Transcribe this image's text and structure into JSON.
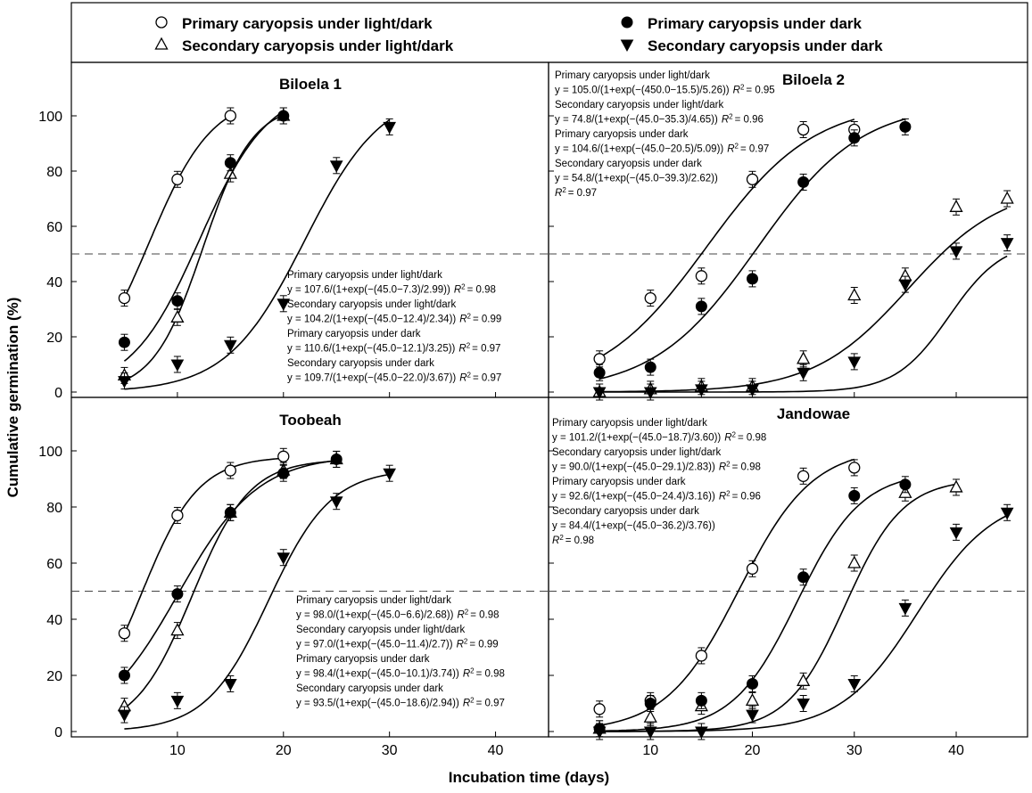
{
  "figure": {
    "xlabel": "Incubation time (days)",
    "ylabel": "Cumulative germination (%)",
    "legend": [
      {
        "label": "Primary caryopsis under light/dark",
        "marker": "open-circle"
      },
      {
        "label": "Primary caryopsis under dark",
        "marker": "filled-circle"
      },
      {
        "label": "Secondary caryopsis under light/dark",
        "marker": "open-triangle-up"
      },
      {
        "label": "Secondary caryopsis under dark",
        "marker": "filled-triangle-down"
      }
    ],
    "reference_line": 50
  },
  "chart_data": [
    {
      "type": "scatter",
      "title": "Biloela 1",
      "xlim": [
        0,
        45
      ],
      "ylim": [
        0,
        115
      ],
      "xticks": [
        10,
        20,
        30,
        40
      ],
      "yticks": [
        0,
        20,
        40,
        60,
        80,
        100
      ],
      "hline": 50,
      "grid": false,
      "legend_placement": "top",
      "series": [
        {
          "name": "Primary caryopsis under light/dark",
          "marker": "open-circle",
          "x": [
            5,
            10,
            15
          ],
          "y": [
            34,
            77,
            100
          ],
          "fit": {
            "a": 107.6,
            "x0": 7.3,
            "b": 2.99,
            "xrange": [
              5,
              15
            ]
          }
        },
        {
          "name": "Secondary caryopsis under light/dark",
          "marker": "open-triangle-up",
          "x": [
            5,
            10,
            15,
            20
          ],
          "y": [
            6,
            27,
            79,
            100
          ],
          "fit": {
            "a": 104.2,
            "x0": 12.4,
            "b": 2.34,
            "xrange": [
              5,
              20
            ]
          }
        },
        {
          "name": "Primary caryopsis under dark",
          "marker": "filled-circle",
          "x": [
            5,
            10,
            15,
            20
          ],
          "y": [
            18,
            33,
            83,
            100
          ],
          "fit": {
            "a": 110.6,
            "x0": 12.1,
            "b": 3.25,
            "xrange": [
              5,
              20
            ]
          }
        },
        {
          "name": "Secondary caryopsis under dark",
          "marker": "filled-triangle-down",
          "x": [
            5,
            10,
            15,
            20,
            25,
            30
          ],
          "y": [
            4,
            10,
            17,
            32,
            82,
            96
          ],
          "fit": {
            "a": 109.7,
            "x0": 22.0,
            "b": 3.67,
            "xrange": [
              5,
              30
            ]
          }
        }
      ],
      "equations": [
        {
          "label": "Primary caryopsis under light/dark",
          "formula": "y = 107.6/(1+exp(−(45.0−7.3)/2.99))",
          "r2": "= 0.98"
        },
        {
          "label": "Secondary caryopsis under light/dark",
          "formula": "y = 104.2/(1+exp(−(45.0−12.4)/2.34))",
          "r2": "= 0.99"
        },
        {
          "label": "Primary caryopsis under dark",
          "formula": "y = 110.6/(1+exp(−(45.0−12.1)/3.25))",
          "r2": "= 0.97"
        },
        {
          "label": "Secondary caryopsis under dark",
          "formula": "y = 109.7/(1+exp(−(45.0−22.0)/3.67))",
          "r2": "= 0.97"
        }
      ]
    },
    {
      "type": "scatter",
      "title": "Biloela 2",
      "xlim": [
        0,
        47
      ],
      "ylim": [
        0,
        115
      ],
      "xticks": [
        10,
        20,
        30,
        40
      ],
      "yticks": [
        0,
        20,
        40,
        60,
        80,
        100
      ],
      "hline": 50,
      "grid": false,
      "series": [
        {
          "name": "Primary caryopsis under light/dark",
          "marker": "open-circle",
          "x": [
            5,
            10,
            15,
            20,
            25,
            30
          ],
          "y": [
            12,
            34,
            42,
            77,
            95,
            95
          ],
          "fit": {
            "a": 105.0,
            "x0": 15.5,
            "b": 5.26,
            "xrange": [
              5,
              30
            ]
          }
        },
        {
          "name": "Secondary caryopsis under light/dark",
          "marker": "open-triangle-up",
          "x": [
            5,
            10,
            15,
            20,
            25,
            30,
            35,
            40,
            45
          ],
          "y": [
            0,
            1,
            2,
            2,
            12,
            35,
            42,
            67,
            70
          ],
          "fit": {
            "a": 74.8,
            "x0": 35.3,
            "b": 4.65,
            "xrange": [
              5,
              45
            ]
          }
        },
        {
          "name": "Primary caryopsis under dark",
          "marker": "filled-circle",
          "x": [
            5,
            10,
            15,
            20,
            25,
            30,
            35
          ],
          "y": [
            7,
            9,
            31,
            41,
            76,
            92,
            96
          ],
          "fit": {
            "a": 104.6,
            "x0": 20.5,
            "b": 5.09,
            "xrange": [
              5,
              35
            ]
          }
        },
        {
          "name": "Secondary caryopsis under dark",
          "marker": "filled-triangle-down",
          "x": [
            5,
            10,
            15,
            20,
            25,
            30,
            35,
            40,
            45
          ],
          "y": [
            0,
            0,
            1,
            1,
            7,
            11,
            39,
            51,
            54
          ],
          "fit": {
            "a": 54.8,
            "x0": 39.3,
            "b": 2.62,
            "xrange": [
              5,
              45
            ]
          }
        }
      ],
      "equations": [
        {
          "label": "Primary caryopsis under light/dark",
          "formula": "y = 105.0/(1+exp(−(450.0−15.5)/5.26))",
          "r2": "= 0.95"
        },
        {
          "label": "Secondary caryopsis under light/dark",
          "formula": "y = 74.8/(1+exp(−(45.0−35.3)/4.65))",
          "r2": "= 0.96"
        },
        {
          "label": "Primary caryopsis under dark",
          "formula": "y = 104.6/(1+exp(−(45.0−20.5)/5.09))",
          "r2": "= 0.97"
        },
        {
          "label": "Secondary caryopsis under dark",
          "formula": "y = 54.8/(1+exp(−(45.0−39.3)/2.62))",
          "r2": "= 0.97"
        }
      ]
    },
    {
      "type": "scatter",
      "title": "Toobeah",
      "xlim": [
        0,
        45
      ],
      "ylim": [
        0,
        115
      ],
      "xticks": [
        10,
        20,
        30,
        40
      ],
      "yticks": [
        0,
        20,
        40,
        60,
        80,
        100
      ],
      "hline": 50,
      "grid": false,
      "series": [
        {
          "name": "Primary caryopsis under light/dark",
          "marker": "open-circle",
          "x": [
            5,
            10,
            15,
            20
          ],
          "y": [
            35,
            77,
            93,
            98
          ],
          "fit": {
            "a": 98.0,
            "x0": 6.6,
            "b": 2.68,
            "xrange": [
              5,
              20
            ]
          }
        },
        {
          "name": "Secondary caryopsis under light/dark",
          "marker": "open-triangle-up",
          "x": [
            5,
            10,
            15,
            20,
            25
          ],
          "y": [
            9,
            36,
            78,
            93,
            97
          ],
          "fit": {
            "a": 97.0,
            "x0": 11.4,
            "b": 2.7,
            "xrange": [
              5,
              25
            ]
          }
        },
        {
          "name": "Primary caryopsis under dark",
          "marker": "filled-circle",
          "x": [
            5,
            10,
            15,
            20,
            25
          ],
          "y": [
            20,
            49,
            78,
            92,
            97
          ],
          "fit": {
            "a": 98.4,
            "x0": 10.1,
            "b": 3.74,
            "xrange": [
              5,
              25
            ]
          }
        },
        {
          "name": "Secondary caryopsis under dark",
          "marker": "filled-triangle-down",
          "x": [
            5,
            10,
            15,
            20,
            25,
            30
          ],
          "y": [
            6,
            11,
            17,
            62,
            82,
            92
          ],
          "fit": {
            "a": 93.5,
            "x0": 18.6,
            "b": 2.94,
            "xrange": [
              5,
              30
            ]
          }
        }
      ],
      "equations": [
        {
          "label": "Primary caryopsis under light/dark",
          "formula": "y = 98.0/(1+exp(−(45.0−6.6)/2.68))",
          "r2": "= 0.98"
        },
        {
          "label": "Secondary caryopsis under light/dark",
          "formula": "y = 97.0/(1+exp(−(45.0−11.4)/2.7))",
          "r2": "= 0.99"
        },
        {
          "label": "Primary caryopsis under dark",
          "formula": "y = 98.4/(1+exp(−(45.0−10.1)/3.74))",
          "r2": "= 0.98"
        },
        {
          "label": "Secondary caryopsis under dark",
          "formula": "y = 93.5/(1+exp(−(45.0−18.6)/2.94))",
          "r2": "= 0.97"
        }
      ]
    },
    {
      "type": "scatter",
      "title": "Jandowae",
      "xlim": [
        0,
        47
      ],
      "ylim": [
        0,
        115
      ],
      "xticks": [
        10,
        20,
        30,
        40
      ],
      "yticks": [
        0,
        20,
        40,
        60,
        80,
        100
      ],
      "hline": 50,
      "grid": false,
      "series": [
        {
          "name": "Primary caryopsis under light/dark",
          "marker": "open-circle",
          "x": [
            5,
            10,
            15,
            20,
            25,
            30
          ],
          "y": [
            8,
            11,
            27,
            58,
            91,
            94
          ],
          "fit": {
            "a": 101.2,
            "x0": 18.7,
            "b": 3.6,
            "xrange": [
              5,
              30
            ]
          }
        },
        {
          "name": "Secondary caryopsis under light/dark",
          "marker": "open-triangle-up",
          "x": [
            5,
            10,
            15,
            20,
            25,
            30,
            35,
            40
          ],
          "y": [
            1,
            5,
            9,
            11,
            18,
            60,
            85,
            87
          ],
          "fit": {
            "a": 90.0,
            "x0": 29.1,
            "b": 2.83,
            "xrange": [
              5,
              40
            ]
          }
        },
        {
          "name": "Primary caryopsis under dark",
          "marker": "filled-circle",
          "x": [
            5,
            10,
            15,
            20,
            25,
            30,
            35
          ],
          "y": [
            1,
            10,
            11,
            17,
            55,
            84,
            88
          ],
          "fit": {
            "a": 92.6,
            "x0": 24.4,
            "b": 3.16,
            "xrange": [
              5,
              35
            ]
          }
        },
        {
          "name": "Secondary caryopsis under dark",
          "marker": "filled-triangle-down",
          "x": [
            5,
            10,
            15,
            20,
            25,
            30,
            35,
            40,
            45
          ],
          "y": [
            0,
            0,
            0,
            6,
            10,
            17,
            44,
            71,
            78
          ],
          "fit": {
            "a": 84.4,
            "x0": 36.2,
            "b": 3.76,
            "xrange": [
              5,
              45
            ]
          }
        }
      ],
      "equations": [
        {
          "label": "Primary caryopsis under light/dark",
          "formula": "y = 101.2/(1+exp(−(45.0−18.7)/3.60))",
          "r2": "= 0.98"
        },
        {
          "label": "Secondary caryopsis under light/dark",
          "formula": "y = 90.0/(1+exp(−(45.0−29.1)/2.83))",
          "r2": "= 0.98"
        },
        {
          "label": "Primary caryopsis under dark",
          "formula": "y = 92.6/(1+exp(−(45.0−24.4)/3.16))",
          "r2": "= 0.96"
        },
        {
          "label": "Secondary caryopsis under dark",
          "formula": "y = 84.4/(1+exp(−(45.0−36.2)/3.76))",
          "r2": "= 0.98"
        }
      ]
    }
  ]
}
